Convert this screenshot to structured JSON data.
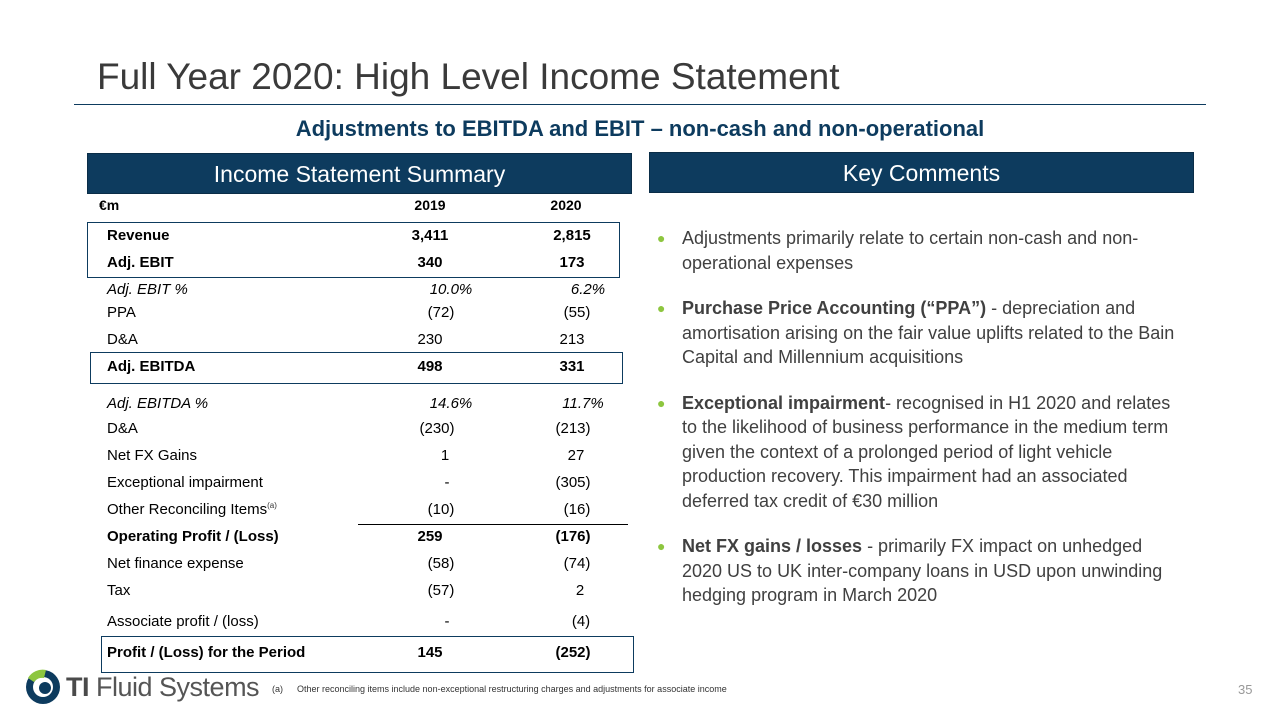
{
  "title": "Full Year 2020:  High Level Income Statement",
  "subtitle": "Adjustments to EBITDA and EBIT – non-cash and non-operational",
  "income_statement": {
    "heading": "Income Statement Summary",
    "col_unit": "€m",
    "col_2019": "2019",
    "col_2020": "2020",
    "rows": [
      {
        "label": "Revenue",
        "v2019": "3,411",
        "v2020": "2,815"
      },
      {
        "label": "Adj. EBIT",
        "v2019": "340",
        "v2020": "173"
      },
      {
        "label": "Adj. EBIT %",
        "v2019": "10.0%",
        "v2020": "6.2%"
      },
      {
        "label": "PPA",
        "v2019": "(72)",
        "v2020": "(55)"
      },
      {
        "label": "D&A",
        "v2019": "230",
        "v2020": "213"
      },
      {
        "label": "Adj. EBITDA",
        "v2019": "498",
        "v2020": "331"
      },
      {
        "label": "Adj. EBITDA %",
        "v2019": "14.6%",
        "v2020": "11.7%"
      },
      {
        "label": "D&A",
        "v2019": "(230)",
        "v2020": "(213)"
      },
      {
        "label": "Net FX Gains",
        "v2019": "1",
        "v2020": "27"
      },
      {
        "label": "Exceptional impairment",
        "v2019": "-",
        "v2020": "(305)"
      },
      {
        "label": "Other Reconciling Items",
        "sup": "(a)",
        "v2019": "(10)",
        "v2020": "(16)"
      },
      {
        "label": "Operating Profit / (Loss)",
        "v2019": "259",
        "v2020": "(176)"
      },
      {
        "label": "Net finance expense",
        "v2019": "(58)",
        "v2020": "(74)"
      },
      {
        "label": "Tax",
        "v2019": "(57)",
        "v2020": "2"
      },
      {
        "label": "Associate profit / (loss)",
        "v2019": "-",
        "v2020": "(4)"
      },
      {
        "label": "Profit / (Loss) for the Period",
        "v2019": "145",
        "v2020": "(252)"
      }
    ]
  },
  "key_comments": {
    "heading": "Key Comments",
    "bullets": [
      {
        "bold": "",
        "text": "Adjustments primarily relate to certain non-cash and non-operational expenses"
      },
      {
        "bold": "Purchase Price Accounting (“PPA”)",
        "text": " - depreciation and amortisation arising on the fair value uplifts related to the Bain Capital and Millennium acquisitions"
      },
      {
        "bold": "Exceptional impairment",
        "text": "- recognised in H1 2020 and relates to the likelihood of business performance in the medium term given the context of a prolonged period of light vehicle production recovery. This impairment had an associated deferred tax credit of €30 million"
      },
      {
        "bold": "Net FX gains / losses",
        "text": " -  primarily FX impact on unhedged 2020 US to UK inter-company loans in USD upon unwinding hedging program in March 2020"
      }
    ]
  },
  "footnote": {
    "marker": "(a)",
    "text": "Other reconciling items include non-exceptional restructuring charges and adjustments for associate income"
  },
  "page_number": "35",
  "logo": {
    "ti": "TI",
    "rest": "Fluid Systems"
  },
  "colors": {
    "navy": "#0d3b5e",
    "bullet_green": "#8dc63f"
  }
}
